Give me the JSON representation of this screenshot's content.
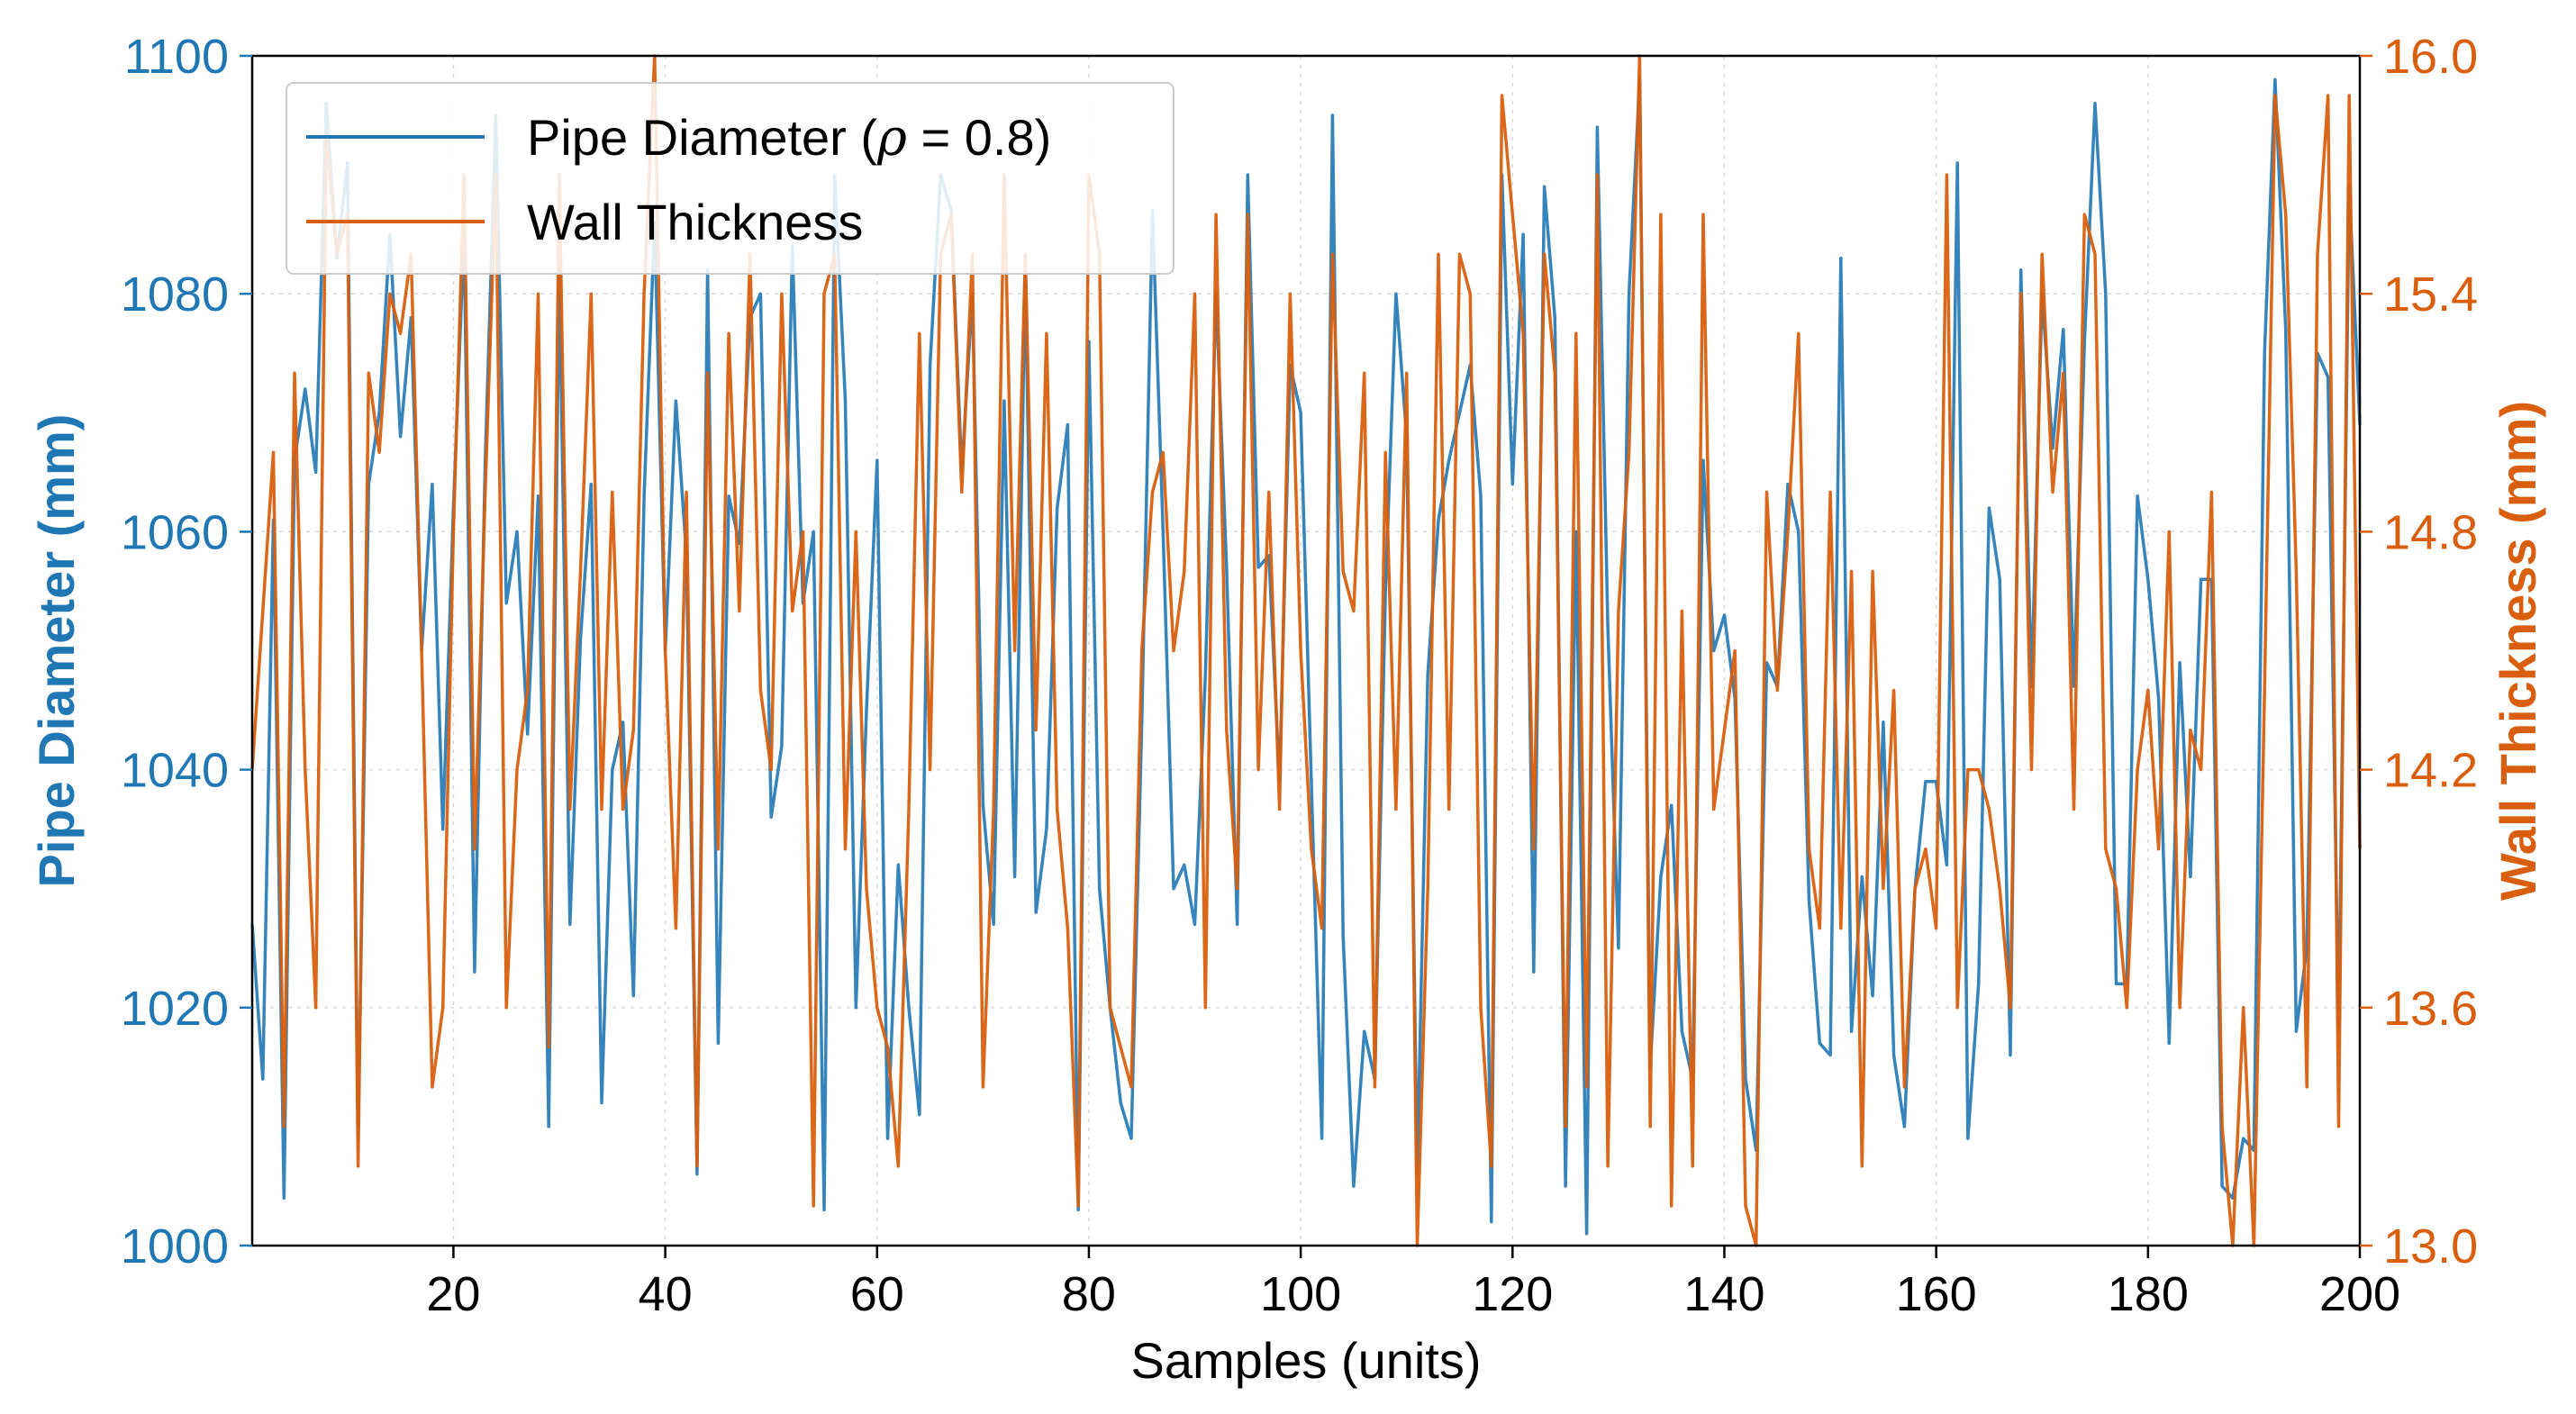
{
  "chart_data": {
    "type": "line",
    "title": "",
    "xlabel": "Samples (units)",
    "ylabel_left": "Pipe Diameter (mm)",
    "ylabel_right": "Wall Thickness (mm)",
    "xlim": [
      1,
      200
    ],
    "ylim_left": [
      1000,
      1100
    ],
    "ylim_right": [
      13.0,
      16.0
    ],
    "x_ticks": [
      20,
      40,
      60,
      80,
      100,
      120,
      140,
      160,
      180,
      200
    ],
    "y_left_ticks": [
      1000,
      1020,
      1040,
      1060,
      1080,
      1100
    ],
    "y_right_ticks": [
      "13.0",
      "13.6",
      "14.2",
      "14.8",
      "15.4",
      "16.0"
    ],
    "grid": true,
    "legend_position": "top-left",
    "legend": {
      "diameter_label": "Pipe Diameter (ρ = 0.8)",
      "diameter_parts": [
        "Pipe Diameter (",
        "ρ",
        " = 0.8)"
      ],
      "thickness_label": "Wall Thickness"
    },
    "colors": {
      "diameter": "#1f77b4",
      "thickness": "#d95f0e",
      "left_axis": "#1f77b4",
      "right_axis": "#d95f0e"
    },
    "x": [
      1,
      2,
      3,
      4,
      5,
      6,
      7,
      8,
      9,
      10,
      11,
      12,
      13,
      14,
      15,
      16,
      17,
      18,
      19,
      20,
      21,
      22,
      23,
      24,
      25,
      26,
      27,
      28,
      29,
      30,
      31,
      32,
      33,
      34,
      35,
      36,
      37,
      38,
      39,
      40,
      41,
      42,
      43,
      44,
      45,
      46,
      47,
      48,
      49,
      50,
      51,
      52,
      53,
      54,
      55,
      56,
      57,
      58,
      59,
      60,
      61,
      62,
      63,
      64,
      65,
      66,
      67,
      68,
      69,
      70,
      71,
      72,
      73,
      74,
      75,
      76,
      77,
      78,
      79,
      80,
      81,
      82,
      83,
      84,
      85,
      86,
      87,
      88,
      89,
      90,
      91,
      92,
      93,
      94,
      95,
      96,
      97,
      98,
      99,
      100,
      101,
      102,
      103,
      104,
      105,
      106,
      107,
      108,
      109,
      110,
      111,
      112,
      113,
      114,
      115,
      116,
      117,
      118,
      119,
      120,
      121,
      122,
      123,
      124,
      125,
      126,
      127,
      128,
      129,
      130,
      131,
      132,
      133,
      134,
      135,
      136,
      137,
      138,
      139,
      140,
      141,
      142,
      143,
      144,
      145,
      146,
      147,
      148,
      149,
      150,
      151,
      152,
      153,
      154,
      155,
      156,
      157,
      158,
      159,
      160,
      161,
      162,
      163,
      164,
      165,
      166,
      167,
      168,
      169,
      170,
      171,
      172,
      173,
      174,
      175,
      176,
      177,
      178,
      179,
      180,
      181,
      182,
      183,
      184,
      185,
      186,
      187,
      188,
      189,
      190,
      191,
      192,
      193,
      194,
      195,
      196,
      197,
      198,
      199,
      200
    ],
    "series": [
      {
        "name": "Pipe Diameter (ρ = 0.8)",
        "axis": "left",
        "values": [
          1027,
          1014,
          1061,
          1004,
          1066,
          1072,
          1065,
          1096,
          1083,
          1091,
          1009,
          1064,
          1070,
          1085,
          1068,
          1078,
          1050,
          1064,
          1035,
          1062,
          1085,
          1023,
          1066,
          1095,
          1054,
          1060,
          1043,
          1063,
          1010,
          1082,
          1027,
          1051,
          1064,
          1012,
          1040,
          1044,
          1021,
          1063,
          1086,
          1050,
          1071,
          1058,
          1006,
          1082,
          1017,
          1063,
          1059,
          1078,
          1080,
          1036,
          1042,
          1084,
          1054,
          1060,
          1003,
          1090,
          1071,
          1020,
          1045,
          1066,
          1009,
          1032,
          1020,
          1011,
          1074,
          1090,
          1087,
          1065,
          1080,
          1037,
          1027,
          1071,
          1031,
          1082,
          1028,
          1035,
          1062,
          1069,
          1003,
          1076,
          1030,
          1020,
          1012,
          1009,
          1044,
          1087,
          1060,
          1030,
          1032,
          1027,
          1048,
          1080,
          1057,
          1027,
          1090,
          1057,
          1058,
          1039,
          1074,
          1070,
          1039,
          1009,
          1095,
          1026,
          1005,
          1018,
          1014,
          1055,
          1080,
          1068,
          1006,
          1048,
          1061,
          1066,
          1070,
          1074,
          1063,
          1002,
          1090,
          1064,
          1085,
          1023,
          1089,
          1078,
          1005,
          1060,
          1001,
          1094,
          1052,
          1025,
          1080,
          1098,
          1015,
          1031,
          1037,
          1018,
          1014,
          1066,
          1050,
          1053,
          1046,
          1014,
          1008,
          1049,
          1047,
          1064,
          1060,
          1029,
          1017,
          1016,
          1083,
          1018,
          1031,
          1021,
          1044,
          1016,
          1010,
          1030,
          1039,
          1039,
          1032,
          1091,
          1009,
          1022,
          1062,
          1056,
          1016,
          1082,
          1047,
          1080,
          1067,
          1077,
          1047,
          1076,
          1096,
          1080,
          1022,
          1022,
          1063,
          1056,
          1046,
          1017,
          1049,
          1031,
          1056,
          1056,
          1005,
          1004,
          1009,
          1008,
          1075,
          1098,
          1077,
          1018,
          1025,
          1075,
          1073,
          1018,
          1089,
          1069
        ]
      },
      {
        "name": "Wall Thickness",
        "axis": "right",
        "values": [
          14.2,
          14.6,
          15.0,
          13.3,
          15.2,
          14.2,
          13.6,
          15.8,
          15.5,
          15.6,
          13.2,
          15.2,
          15.0,
          15.4,
          15.3,
          15.5,
          14.5,
          13.4,
          13.6,
          14.8,
          15.7,
          14.0,
          14.9,
          15.7,
          13.6,
          14.2,
          14.4,
          15.4,
          13.5,
          15.7,
          14.1,
          14.7,
          15.4,
          14.1,
          14.9,
          14.1,
          14.3,
          15.4,
          16.0,
          14.5,
          13.8,
          14.9,
          13.2,
          15.2,
          14.0,
          15.3,
          14.6,
          15.5,
          14.4,
          14.2,
          15.4,
          14.6,
          14.8,
          13.1,
          15.4,
          15.5,
          14.0,
          14.8,
          13.9,
          13.6,
          13.5,
          13.2,
          14.1,
          15.3,
          14.2,
          15.5,
          15.6,
          14.9,
          15.5,
          13.4,
          14.1,
          15.7,
          14.5,
          15.5,
          14.3,
          15.3,
          14.1,
          13.8,
          13.1,
          15.7,
          15.5,
          13.6,
          13.5,
          13.4,
          14.5,
          14.9,
          15.0,
          14.5,
          14.7,
          15.4,
          13.6,
          15.6,
          14.3,
          13.9,
          15.6,
          14.2,
          14.9,
          14.1,
          15.4,
          14.5,
          14.0,
          13.8,
          15.5,
          14.7,
          14.6,
          15.2,
          13.4,
          15.0,
          14.1,
          15.2,
          13.0,
          13.9,
          15.5,
          14.1,
          15.5,
          15.4,
          13.6,
          13.2,
          15.9,
          15.6,
          15.3,
          14.0,
          15.5,
          15.2,
          13.3,
          15.3,
          13.4,
          15.7,
          13.2,
          14.6,
          15.0,
          16.0,
          13.3,
          15.6,
          13.1,
          14.6,
          13.2,
          15.6,
          14.1,
          14.3,
          14.5,
          13.1,
          13.0,
          14.9,
          14.4,
          14.8,
          15.3,
          14.0,
          13.8,
          14.9,
          13.8,
          14.7,
          13.2,
          14.7,
          13.9,
          14.4,
          13.4,
          13.9,
          14.0,
          13.8,
          15.7,
          13.6,
          14.2,
          14.2,
          14.1,
          13.9,
          13.6,
          15.4,
          14.2,
          15.5,
          14.9,
          15.2,
          14.1,
          15.6,
          15.5,
          14.0,
          13.9,
          13.6,
          14.2,
          14.4,
          14.0,
          14.8,
          13.6,
          14.3,
          14.2,
          14.9,
          13.3,
          13.0,
          13.6,
          13.0,
          14.4,
          15.9,
          15.6,
          14.7,
          13.4,
          15.5,
          15.9,
          13.3,
          15.9,
          14.0
        ]
      }
    ]
  }
}
